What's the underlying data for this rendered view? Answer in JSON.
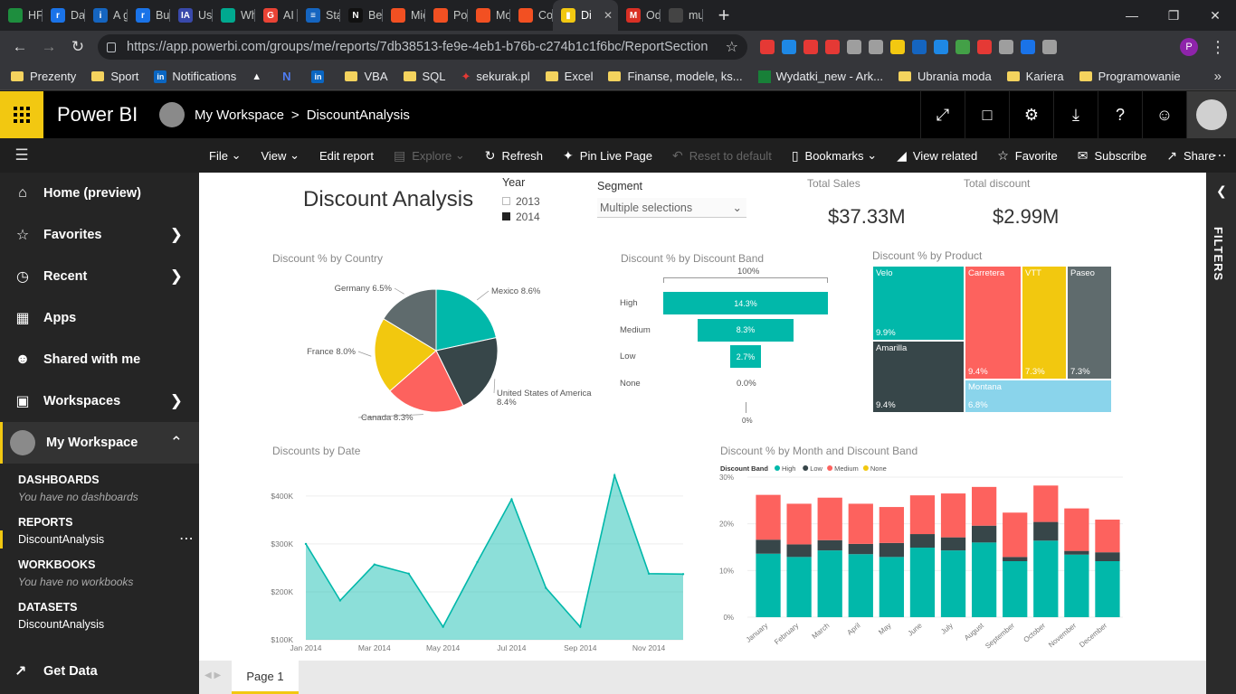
{
  "browser": {
    "tabs": [
      {
        "label": "HFM",
        "color": "#1e8e3e",
        "glyph": ""
      },
      {
        "label": "Data",
        "color": "#1a73e8",
        "glyph": "r"
      },
      {
        "label": "A gro",
        "color": "#1565c0",
        "glyph": "i"
      },
      {
        "label": "Busin",
        "color": "#1a73e8",
        "glyph": "r"
      },
      {
        "label": "Using",
        "color": "#3949ab",
        "glyph": "IA"
      },
      {
        "label": "What",
        "color": "#00a98f",
        "glyph": ""
      },
      {
        "label": "AI Tre",
        "color": "#ea4335",
        "glyph": "G"
      },
      {
        "label": "Stakel",
        "color": "#1565c0",
        "glyph": "≡"
      },
      {
        "label": "Benef",
        "color": "#111111",
        "glyph": "N"
      },
      {
        "label": "Micro",
        "color": "#f25022",
        "glyph": ""
      },
      {
        "label": "Power",
        "color": "#f25022",
        "glyph": ""
      },
      {
        "label": "Mode",
        "color": "#f25022",
        "glyph": ""
      },
      {
        "label": "Conn",
        "color": "#f25022",
        "glyph": ""
      },
      {
        "label": "Di",
        "color": "#f2c811",
        "glyph": "▮",
        "active": true
      },
      {
        "label": "Odeb",
        "color": "#d93025",
        "glyph": "M"
      },
      {
        "label": "much",
        "color": "#444444",
        "glyph": ""
      }
    ],
    "url": "https://app.powerbi.com/groups/me/reports/7db38513-fe9e-4eb1-b76b-c274b1c1f6bc/ReportSection",
    "profile_initial": "P",
    "extension_colors": [
      "#e53935",
      "#1e88e5",
      "#e53935",
      "#e53935",
      "#9e9e9e",
      "#9e9e9e",
      "#f2c811",
      "#1565c0",
      "#1e88e5",
      "#43a047",
      "#e53935",
      "#9e9e9e",
      "#1a73e8",
      "#9e9e9e"
    ],
    "bookmarks": [
      {
        "label": "Prezenty",
        "icon": "folder"
      },
      {
        "label": "Sport",
        "icon": "folder"
      },
      {
        "label": "Notifications",
        "icon": "in"
      },
      {
        "label": "",
        "icon": "flask"
      },
      {
        "label": "",
        "icon": "N"
      },
      {
        "label": "",
        "icon": "in"
      },
      {
        "label": "VBA",
        "icon": "folder"
      },
      {
        "label": "SQL",
        "icon": "folder"
      },
      {
        "label": "sekurak.pl",
        "icon": "bird"
      },
      {
        "label": "Excel",
        "icon": "folder"
      },
      {
        "label": "Finanse, modele, ks...",
        "icon": "folder"
      },
      {
        "label": "Wydatki_new - Ark...",
        "icon": "sheet"
      },
      {
        "label": "Ubrania moda",
        "icon": "folder"
      },
      {
        "label": "Kariera",
        "icon": "folder"
      },
      {
        "label": "Programowanie",
        "icon": "folder"
      }
    ]
  },
  "header": {
    "app_title": "Power BI",
    "workspace": "My Workspace",
    "separator": ">",
    "report_name": "DiscountAnalysis"
  },
  "commands": {
    "file": "File",
    "view": "View",
    "edit": "Edit report",
    "explore": "Explore",
    "refresh": "Refresh",
    "pin": "Pin Live Page",
    "reset": "Reset to default",
    "bookmarks": "Bookmarks",
    "related": "View related",
    "favorite": "Favorite",
    "subscribe": "Subscribe",
    "share": "Share"
  },
  "sidebar": {
    "home": "Home (preview)",
    "favorites": "Favorites",
    "recent": "Recent",
    "apps": "Apps",
    "shared": "Shared with me",
    "workspaces": "Workspaces",
    "my_workspace": "My Workspace",
    "dashboards_h": "DASHBOARDS",
    "dashboards_empty": "You have no dashboards",
    "reports_h": "REPORTS",
    "report_item": "DiscountAnalysis",
    "workbooks_h": "WORKBOOKS",
    "workbooks_empty": "You have no workbooks",
    "datasets_h": "DATASETS",
    "dataset_item": "DiscountAnalysis",
    "get_data": "Get Data"
  },
  "filters_label": "FILTERS",
  "page_tab": "Page 1",
  "report": {
    "title": "Discount Analysis",
    "year_slicer": {
      "title": "Year",
      "options": [
        {
          "label": "2013",
          "selected": false
        },
        {
          "label": "2014",
          "selected": true
        }
      ]
    },
    "segment_slicer": {
      "title": "Segment",
      "value": "Multiple selections"
    },
    "cards": [
      {
        "title": "Total Sales",
        "value": "$37.33M"
      },
      {
        "title": "Total discount",
        "value": "$2.99M"
      }
    ]
  },
  "chart_data": [
    {
      "type": "pie",
      "title": "Discount % by Country",
      "categories": [
        "Mexico",
        "United States of America",
        "Canada",
        "France",
        "Germany"
      ],
      "values": [
        8.6,
        8.4,
        8.3,
        8.0,
        6.5
      ],
      "labels": [
        "Mexico 8.6%",
        "United States of America 8.4%",
        "Canada 8.3%",
        "France 8.0%",
        "Germany 6.5%"
      ],
      "colors": [
        "#01b8aa",
        "#374649",
        "#fd625e",
        "#f2c80f",
        "#5f6b6d"
      ]
    },
    {
      "type": "bar",
      "title": "Discount % by Discount Band",
      "categories": [
        "High",
        "Medium",
        "Low",
        "None"
      ],
      "values": [
        14.3,
        8.3,
        2.7,
        0.0
      ],
      "labels": [
        "14.3%",
        "8.3%",
        "2.7%",
        "0.0%"
      ],
      "top_label": "100%",
      "bottom_label": "0%",
      "color": "#01b8aa"
    },
    {
      "type": "heatmap",
      "title": "Discount % by Product",
      "categories": [
        "Velo",
        "Carretera",
        "VTT",
        "Paseo",
        "Amarilla",
        "Montana"
      ],
      "values": [
        9.9,
        9.4,
        7.3,
        7.3,
        9.4,
        6.8
      ],
      "labels": [
        "9.9%",
        "9.4%",
        "7.3%",
        "7.3%",
        "9.4%",
        "6.8%"
      ],
      "colors": [
        "#01b8aa",
        "#fd625e",
        "#f2c80f",
        "#5f6b6d",
        "#374649",
        "#8ad4eb"
      ]
    },
    {
      "type": "area",
      "title": "Discounts by Date",
      "x": [
        "2014-01-01",
        "2014-02-01",
        "2014-03-01",
        "2014-04-01",
        "2014-05-01",
        "2014-06-01",
        "2014-07-01",
        "2014-08-01",
        "2014-09-01",
        "2014-10-01",
        "2014-11-01",
        "2014-12-01"
      ],
      "values": [
        300000,
        182000,
        257000,
        238000,
        127000,
        262000,
        393000,
        208000,
        127000,
        443000,
        238000,
        237000
      ],
      "x_tick_labels": [
        "Jan 2014",
        "Mar 2014",
        "May 2014",
        "Jul 2014",
        "Sep 2014",
        "Nov 2014"
      ],
      "y_tick_labels": [
        "$100K",
        "$200K",
        "$300K",
        "$400K"
      ],
      "y_ticks": [
        100000,
        200000,
        300000,
        400000
      ],
      "ylim": [
        100000,
        460000
      ],
      "color": "#01b8aa"
    },
    {
      "type": "bar",
      "stacked": true,
      "title": "Discount % by Month and Discount Band",
      "legend_title": "Discount Band",
      "categories": [
        "January",
        "February",
        "March",
        "April",
        "May",
        "June",
        "July",
        "August",
        "September",
        "October",
        "November",
        "December"
      ],
      "series": [
        {
          "name": "High",
          "color": "#01b8aa",
          "values": [
            13.6,
            12.9,
            14.3,
            13.5,
            12.9,
            14.9,
            14.3,
            16.0,
            12.0,
            16.4,
            13.4,
            12.0
          ]
        },
        {
          "name": "Low",
          "color": "#374649",
          "values": [
            3.0,
            2.7,
            2.2,
            2.2,
            3.0,
            2.9,
            2.8,
            3.6,
            0.9,
            4.0,
            0.8,
            1.9
          ]
        },
        {
          "name": "Medium",
          "color": "#fd625e",
          "values": [
            9.6,
            8.7,
            9.1,
            8.6,
            7.7,
            8.3,
            9.4,
            8.3,
            9.5,
            7.8,
            9.1,
            7.0
          ]
        },
        {
          "name": "None",
          "color": "#f2c80f",
          "values": [
            0,
            0,
            0,
            0,
            0,
            0,
            0,
            0,
            0,
            0,
            0,
            0
          ]
        }
      ],
      "y_tick_labels": [
        "0%",
        "10%",
        "20%",
        "30%"
      ],
      "y_ticks": [
        0,
        10,
        20,
        30
      ],
      "ylim": [
        0,
        30
      ]
    }
  ]
}
